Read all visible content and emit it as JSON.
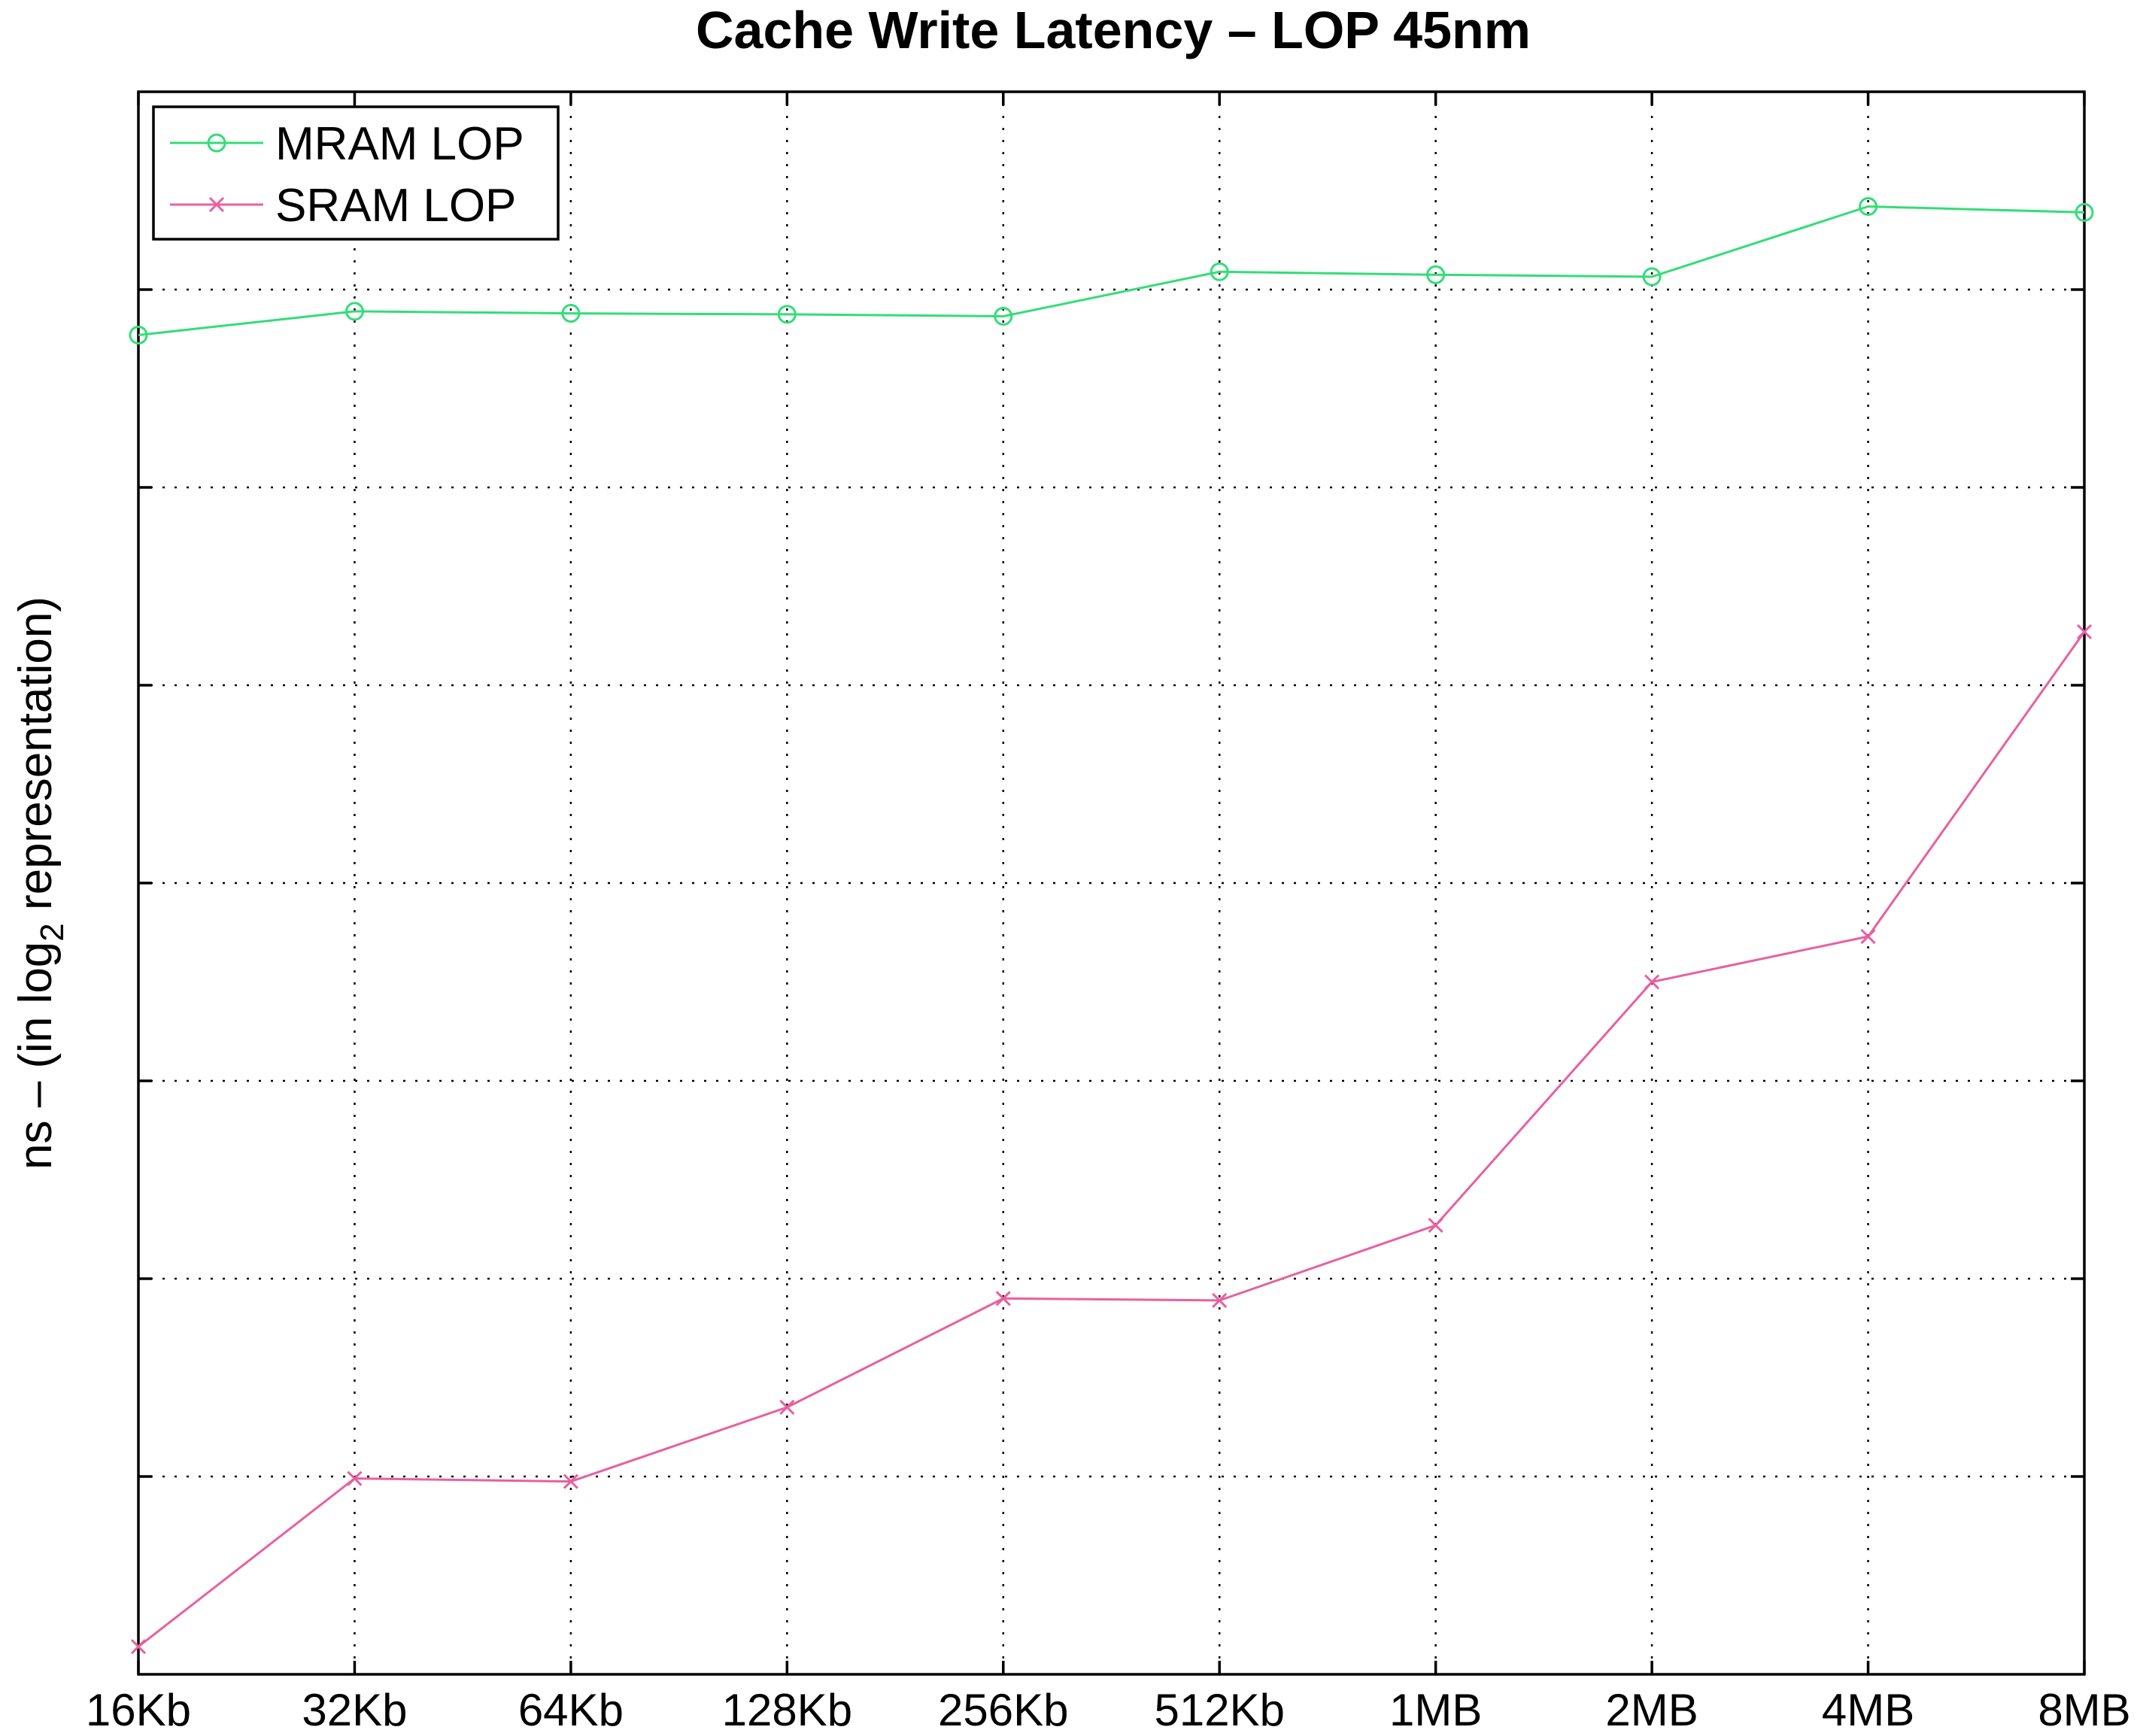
{
  "chart_data": {
    "type": "line",
    "title": "Cache Write Latency – LOP  45nm",
    "xlabel": "",
    "ylabel_main": "ns – (in log",
    "ylabel_sub": "2",
    "ylabel_tail": " representation)",
    "categories": [
      "16Kb",
      "32Kb",
      "64Kb",
      "128Kb",
      "256Kb",
      "512Kb",
      "1MB",
      "2MB",
      "4MB",
      "8MB"
    ],
    "ylim": [
      0,
      8
    ],
    "y_gridlines": [
      1,
      2,
      3,
      4,
      5,
      6,
      7
    ],
    "y_tick_labels_shown": false,
    "grid": true,
    "legend_position": "top-left",
    "series": [
      {
        "name": "MRAM LOP",
        "color": "#33dd77",
        "marker": "circle",
        "values": [
          6.77,
          6.89,
          6.88,
          6.875,
          6.865,
          7.09,
          7.075,
          7.065,
          7.42,
          7.39
        ]
      },
      {
        "name": "SRAM LOP",
        "color": "#e8609e",
        "marker": "x",
        "values": [
          0.14,
          0.99,
          0.975,
          1.35,
          1.9,
          1.89,
          2.27,
          3.5,
          3.73,
          5.27
        ]
      }
    ]
  }
}
